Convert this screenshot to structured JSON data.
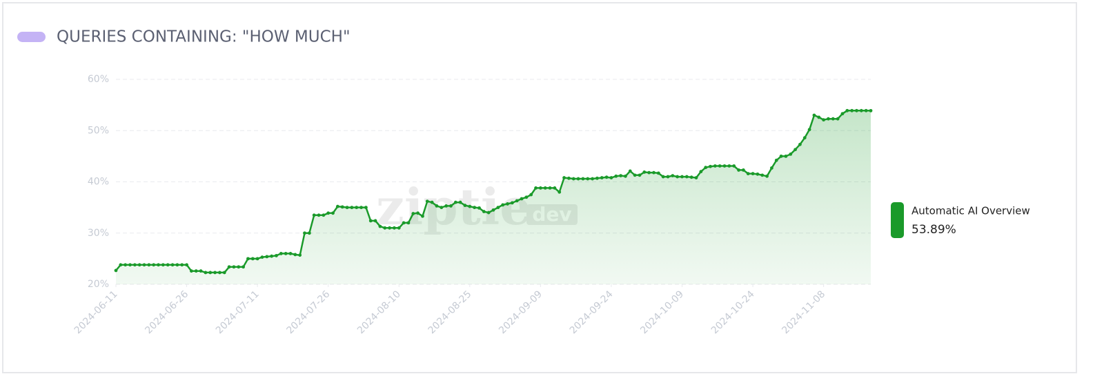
{
  "chart_data": {
    "type": "line",
    "title": "QUERIES CONTAINING: \"HOW MUCH\"",
    "watermark": {
      "name": "ziptie",
      "badge": "dev"
    },
    "x": [
      "2024-06-11",
      "2024-06-12",
      "2024-06-13",
      "2024-06-14",
      "2024-06-15",
      "2024-06-16",
      "2024-06-17",
      "2024-06-18",
      "2024-06-19",
      "2024-06-20",
      "2024-06-21",
      "2024-06-22",
      "2024-06-23",
      "2024-06-24",
      "2024-06-25",
      "2024-06-26",
      "2024-06-27",
      "2024-06-28",
      "2024-06-29",
      "2024-06-30",
      "2024-07-01",
      "2024-07-02",
      "2024-07-03",
      "2024-07-04",
      "2024-07-05",
      "2024-07-06",
      "2024-07-07",
      "2024-07-08",
      "2024-07-09",
      "2024-07-10",
      "2024-07-11",
      "2024-07-12",
      "2024-07-13",
      "2024-07-14",
      "2024-07-15",
      "2024-07-16",
      "2024-07-17",
      "2024-07-18",
      "2024-07-19",
      "2024-07-20",
      "2024-07-21",
      "2024-07-22",
      "2024-07-23",
      "2024-07-24",
      "2024-07-25",
      "2024-07-26",
      "2024-07-27",
      "2024-07-28",
      "2024-07-29",
      "2024-07-30",
      "2024-07-31",
      "2024-08-01",
      "2024-08-02",
      "2024-08-03",
      "2024-08-04",
      "2024-08-05",
      "2024-08-06",
      "2024-08-07",
      "2024-08-08",
      "2024-08-09",
      "2024-08-10",
      "2024-08-11",
      "2024-08-12",
      "2024-08-13",
      "2024-08-14",
      "2024-08-15",
      "2024-08-16",
      "2024-08-17",
      "2024-08-18",
      "2024-08-19",
      "2024-08-20",
      "2024-08-21",
      "2024-08-22",
      "2024-08-23",
      "2024-08-24",
      "2024-08-25",
      "2024-08-26",
      "2024-08-27",
      "2024-08-28",
      "2024-08-29",
      "2024-08-30",
      "2024-08-31",
      "2024-09-01",
      "2024-09-02",
      "2024-09-03",
      "2024-09-04",
      "2024-09-05",
      "2024-09-06",
      "2024-09-07",
      "2024-09-08",
      "2024-09-09",
      "2024-09-10",
      "2024-09-11",
      "2024-09-12",
      "2024-09-13",
      "2024-09-14",
      "2024-09-15",
      "2024-09-16",
      "2024-09-17",
      "2024-09-18",
      "2024-09-19",
      "2024-09-20",
      "2024-09-21",
      "2024-09-22",
      "2024-09-23",
      "2024-09-24",
      "2024-09-25",
      "2024-09-26",
      "2024-09-27",
      "2024-09-28",
      "2024-09-29",
      "2024-09-30",
      "2024-10-01",
      "2024-10-02",
      "2024-10-03",
      "2024-10-04",
      "2024-10-05",
      "2024-10-06",
      "2024-10-07",
      "2024-10-08",
      "2024-10-09",
      "2024-10-10",
      "2024-10-11",
      "2024-10-12",
      "2024-10-13",
      "2024-10-14",
      "2024-10-15",
      "2024-10-16",
      "2024-10-17",
      "2024-10-18",
      "2024-10-19",
      "2024-10-20",
      "2024-10-21",
      "2024-10-22",
      "2024-10-23",
      "2024-10-24",
      "2024-10-25",
      "2024-10-26",
      "2024-10-27",
      "2024-10-28",
      "2024-10-29",
      "2024-10-30",
      "2024-10-31",
      "2024-11-01",
      "2024-11-02",
      "2024-11-03",
      "2024-11-04",
      "2024-11-05",
      "2024-11-06",
      "2024-11-07",
      "2024-11-08",
      "2024-11-09",
      "2024-11-10",
      "2024-11-11",
      "2024-11-12",
      "2024-11-13",
      "2024-11-14",
      "2024-11-15",
      "2024-11-16",
      "2024-11-17",
      "2024-11-18"
    ],
    "series": [
      {
        "name": "Automatic AI Overview",
        "color": "#1a9a2a",
        "values": [
          22.7,
          23.8,
          23.8,
          23.8,
          23.8,
          23.8,
          23.8,
          23.8,
          23.8,
          23.8,
          23.8,
          23.8,
          23.8,
          23.8,
          23.8,
          23.8,
          22.6,
          22.6,
          22.6,
          22.3,
          22.3,
          22.3,
          22.3,
          22.3,
          23.4,
          23.4,
          23.4,
          23.4,
          25.0,
          25.0,
          25.0,
          25.3,
          25.4,
          25.5,
          25.6,
          26.0,
          26.0,
          26.0,
          25.8,
          25.7,
          30.0,
          30.0,
          33.5,
          33.5,
          33.5,
          33.9,
          33.9,
          35.2,
          35.1,
          35.0,
          35.0,
          35.0,
          35.0,
          35.0,
          32.4,
          32.4,
          31.3,
          31.0,
          31.0,
          31.0,
          31.0,
          32.0,
          32.0,
          33.8,
          33.9,
          33.3,
          36.2,
          36.0,
          35.3,
          35.0,
          35.3,
          35.3,
          36.0,
          36.0,
          35.4,
          35.2,
          35.0,
          34.9,
          34.2,
          34.0,
          34.5,
          35.0,
          35.5,
          35.7,
          35.9,
          36.3,
          36.7,
          37.0,
          37.5,
          38.8,
          38.8,
          38.8,
          38.8,
          38.8,
          38.0,
          40.8,
          40.7,
          40.6,
          40.6,
          40.6,
          40.6,
          40.6,
          40.7,
          40.8,
          40.9,
          40.8,
          41.1,
          41.2,
          41.1,
          42.1,
          41.3,
          41.3,
          41.9,
          41.8,
          41.8,
          41.7,
          41.0,
          41.0,
          41.2,
          41.0,
          41.0,
          41.0,
          40.9,
          40.8,
          42.0,
          42.8,
          43.0,
          43.1,
          43.1,
          43.1,
          43.1,
          43.1,
          42.3,
          42.3,
          41.6,
          41.6,
          41.5,
          41.3,
          41.1,
          42.7,
          44.2,
          45.0,
          45.0,
          45.4,
          46.3,
          47.3,
          48.6,
          50.2,
          53.0,
          52.6,
          52.1,
          52.3,
          52.3,
          52.3,
          53.3,
          53.9,
          53.9,
          53.9,
          53.9,
          53.9,
          53.89
        ],
        "value_labels": [
          null,
          null,
          null,
          null,
          null,
          null,
          null,
          null,
          null,
          null,
          null,
          null,
          null,
          null,
          null,
          null,
          null,
          null,
          null,
          null,
          null,
          null,
          null,
          null,
          null,
          null,
          null,
          null,
          null,
          null,
          null,
          null,
          null,
          null,
          null,
          null,
          null,
          null,
          null,
          null,
          null,
          null,
          null,
          null,
          null,
          null,
          null,
          null,
          null,
          null,
          null,
          null,
          null,
          null,
          null,
          null,
          null,
          null,
          null,
          null,
          null,
          null,
          null,
          null,
          null,
          null,
          null,
          null,
          null,
          null,
          null,
          null,
          null,
          null,
          null,
          null,
          null,
          null,
          null,
          null,
          null,
          null,
          null,
          null,
          null,
          null,
          null,
          null,
          null,
          null,
          null,
          null,
          null,
          null,
          null,
          null,
          null,
          null,
          null,
          null,
          null,
          null,
          null,
          null,
          null,
          null,
          null,
          null,
          null,
          null,
          null,
          null,
          null,
          null,
          null,
          null,
          null,
          null,
          null,
          null,
          null,
          null,
          null,
          null,
          null,
          null,
          null,
          null,
          null,
          null,
          null,
          null,
          null,
          null,
          null,
          null,
          null,
          null,
          null,
          null,
          null,
          null,
          null,
          null,
          null,
          null,
          null,
          null,
          null,
          null,
          null,
          null,
          null,
          null,
          null,
          null,
          null,
          null,
          null,
          null,
          "53.89%"
        ]
      }
    ],
    "xlim": [
      "2024-06-11",
      "2024-11-18"
    ],
    "xticks": [
      "2024-06-11",
      "2024-06-26",
      "2024-07-11",
      "2024-07-26",
      "2024-08-10",
      "2024-08-25",
      "2024-09-09",
      "2024-09-24",
      "2024-10-09",
      "2024-10-24",
      "2024-11-08"
    ],
    "ylim": [
      20,
      60
    ],
    "yticks": [
      {
        "value": 20,
        "label": "20%"
      },
      {
        "value": 30,
        "label": "30%"
      },
      {
        "value": 40,
        "label": "40%"
      },
      {
        "value": 50,
        "label": "50%"
      },
      {
        "value": 60,
        "label": "60%"
      }
    ],
    "grid": true,
    "legend": "right"
  }
}
